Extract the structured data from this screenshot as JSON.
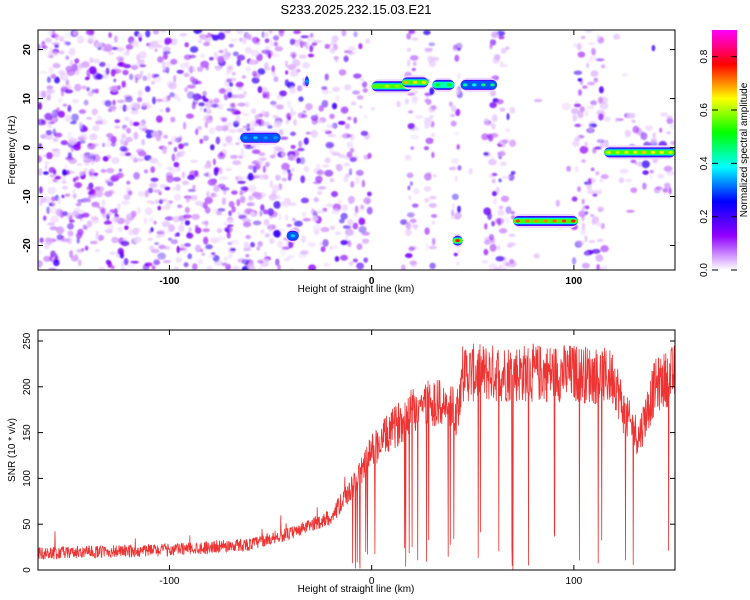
{
  "title": "S233.2025.232.15.03.E21",
  "chart_data": [
    {
      "type": "heatmap",
      "name": "spectrogram",
      "xlabel": "Height of straight line (km)",
      "ylabel": "Frequency (Hz)",
      "xlim": [
        -165,
        150
      ],
      "ylim": [
        -25,
        24
      ],
      "xticks": [
        -100,
        0,
        100
      ],
      "yticks": [
        -20,
        -10,
        0,
        10,
        20
      ],
      "colorbar": {
        "label": "Normalized spectral amplitude",
        "range": [
          0.0,
          0.9
        ],
        "ticks": [
          0.0,
          0.2,
          0.4,
          0.6,
          0.8
        ],
        "colors": [
          "#ffffff",
          "#9000ff",
          "#0000ff",
          "#00ffff",
          "#00ff00",
          "#ffff00",
          "#ff0000",
          "#ff00ff"
        ]
      },
      "tones": [
        {
          "x_start": 0,
          "x_end": 20,
          "freq": 12.5,
          "amp": 0.55
        },
        {
          "x_start": 15,
          "x_end": 28,
          "freq": 13.3,
          "amp": 0.65
        },
        {
          "x_start": 30,
          "x_end": 41,
          "freq": 12.8,
          "amp": 0.45
        },
        {
          "x_start": 44,
          "x_end": 62,
          "freq": 12.8,
          "amp": 0.4
        },
        {
          "x_start": 70,
          "x_end": 102,
          "freq": -15,
          "amp": 0.7
        },
        {
          "x_start": 115,
          "x_end": 150,
          "freq": -1,
          "amp": 0.6
        },
        {
          "x_start": 40,
          "x_end": 45,
          "freq": -19,
          "amp": 0.75
        },
        {
          "x_start": -42,
          "x_end": -36,
          "freq": -18,
          "amp": 0.3
        },
        {
          "x_start": -33,
          "x_end": -31,
          "freq": 13.5,
          "amp": 0.3
        },
        {
          "x_start": -65,
          "x_end": -45,
          "freq": 2,
          "amp": 0.3
        }
      ]
    },
    {
      "type": "line",
      "name": "snr",
      "xlabel": "Height of straight line (km)",
      "ylabel": "SNR (10 * v/v)",
      "xlim": [
        -165,
        150
      ],
      "ylim": [
        0,
        262
      ],
      "xticks": [
        -100,
        0,
        100
      ],
      "yticks": [
        0,
        50,
        100,
        150,
        200,
        250
      ],
      "color": "#ee3333",
      "profile": {
        "x": [
          -165,
          -100,
          -60,
          -40,
          -20,
          -8,
          0,
          20,
          30,
          42,
          45,
          70,
          100,
          120,
          125,
          132,
          140,
          150
        ],
        "y": [
          18,
          22,
          28,
          40,
          58,
          95,
          130,
          175,
          185,
          172,
          215,
          215,
          215,
          210,
          170,
          145,
          200,
          215
        ]
      }
    }
  ]
}
